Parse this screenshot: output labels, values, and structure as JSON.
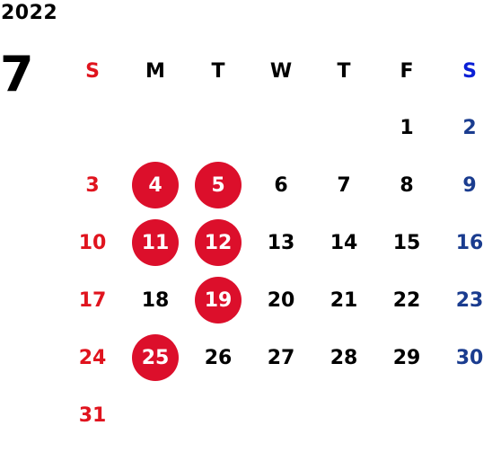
{
  "year": "2022",
  "month": "7",
  "weekdays": [
    "S",
    "M",
    "T",
    "W",
    "T",
    "F",
    "S"
  ],
  "weeks": [
    [
      "",
      "",
      "",
      "",
      "",
      "1",
      "2"
    ],
    [
      "3",
      "4",
      "5",
      "6",
      "7",
      "8",
      "9"
    ],
    [
      "10",
      "11",
      "12",
      "13",
      "14",
      "15",
      "16"
    ],
    [
      "17",
      "18",
      "19",
      "20",
      "21",
      "22",
      "23"
    ],
    [
      "24",
      "25",
      "26",
      "27",
      "28",
      "29",
      "30"
    ],
    [
      "31",
      "",
      "",
      "",
      "",
      "",
      ""
    ]
  ],
  "highlighted_days": [
    "4",
    "5",
    "11",
    "12",
    "19",
    "25"
  ],
  "colors": {
    "sunday": "#e0141e",
    "saturday": "#1a3c8f",
    "saturday_header": "#0a1fd6",
    "highlight_circle": "#dc0f2b",
    "weekday": "#000000"
  }
}
